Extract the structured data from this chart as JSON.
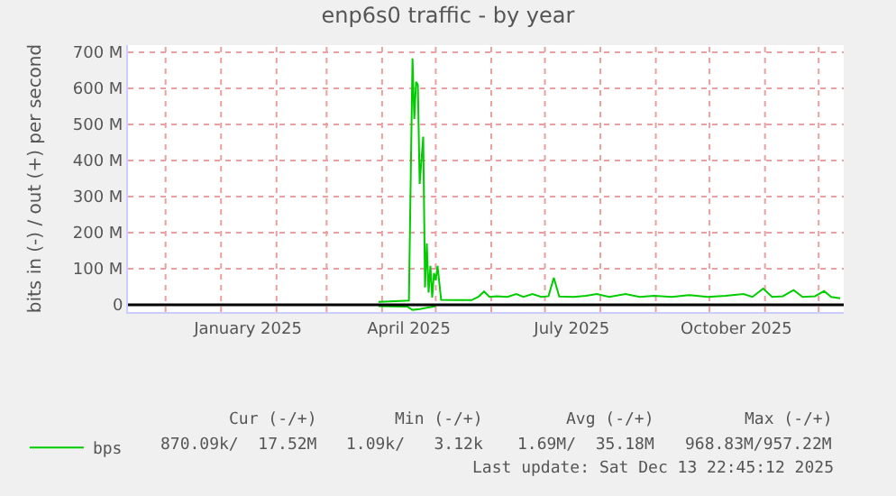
{
  "chart_data": {
    "type": "line",
    "title": "enp6s0 traffic - by year",
    "ylabel": "bits in (-) / out (+) per second",
    "series": [
      {
        "name": "bps",
        "color": "#00cc00",
        "x": [
          "2025-03-30",
          "2025-04-08",
          "2025-04-16",
          "2025-04-18",
          "2025-04-19",
          "2025-04-20",
          "2025-04-21",
          "2025-04-22",
          "2025-04-24",
          "2025-04-25",
          "2025-04-26",
          "2025-04-27",
          "2025-04-28",
          "2025-04-29",
          "2025-04-30",
          "2025-05-01",
          "2025-05-02",
          "2025-05-04",
          "2025-05-13",
          "2025-05-21",
          "2025-05-25",
          "2025-05-28",
          "2025-05-31",
          "2025-06-04",
          "2025-06-10",
          "2025-06-15",
          "2025-06-19",
          "2025-06-24",
          "2025-06-29",
          "2025-07-03",
          "2025-07-06",
          "2025-07-09",
          "2025-07-17",
          "2025-07-24",
          "2025-07-30",
          "2025-08-06",
          "2025-08-15",
          "2025-08-23",
          "2025-08-31",
          "2025-09-10",
          "2025-09-20",
          "2025-09-30",
          "2025-10-10",
          "2025-10-20",
          "2025-10-25",
          "2025-10-31",
          "2025-11-05",
          "2025-11-11",
          "2025-11-17",
          "2025-11-22",
          "2025-11-29",
          "2025-12-04",
          "2025-12-08",
          "2025-12-13"
        ],
        "values": [
          8,
          10,
          12,
          683,
          515,
          618,
          610,
          335,
          466,
          48,
          170,
          34,
          108,
          20,
          88,
          68,
          108,
          14,
          13,
          13,
          23,
          37,
          22,
          24,
          22,
          30,
          22,
          30,
          22,
          24,
          75,
          23,
          22,
          25,
          30,
          22,
          30,
          22,
          25,
          22,
          27,
          22,
          25,
          30,
          22,
          45,
          22,
          24,
          41,
          22,
          24,
          38,
          22,
          18
        ]
      },
      {
        "color": "#00cc00",
        "x": [
          "2025-03-30",
          "2025-04-15",
          "2025-04-18",
          "2025-04-22",
          "2025-04-26",
          "2025-05-01"
        ],
        "values": [
          -4,
          -5,
          -14,
          -12,
          -8,
          -4
        ]
      }
    ],
    "xlim": [
      "2024-11-10",
      "2025-12-15"
    ],
    "xticks": [
      {
        "value": "2024-12-01",
        "label": null
      },
      {
        "value": "2025-01-01",
        "label": null
      },
      {
        "value": "2025-02-01",
        "label": null
      },
      {
        "value": "2025-03-01",
        "label": null
      },
      {
        "value": "2025-04-01",
        "label": null
      },
      {
        "value": "2025-05-01",
        "label": null
      },
      {
        "value": "2025-06-01",
        "label": null
      },
      {
        "value": "2025-07-01",
        "label": null
      },
      {
        "value": "2025-08-01",
        "label": null
      },
      {
        "value": "2025-09-01",
        "label": null
      },
      {
        "value": "2025-10-01",
        "label": null
      },
      {
        "value": "2025-11-01",
        "label": null
      },
      {
        "value": "2025-12-01",
        "label": null
      },
      {
        "value": "2025-01-16",
        "label": "January 2025"
      },
      {
        "value": "2025-04-16",
        "label": "April 2025"
      },
      {
        "value": "2025-07-16",
        "label": "July 2025"
      },
      {
        "value": "2025-10-16",
        "label": "October 2025"
      }
    ],
    "ylim": [
      -20,
      720
    ],
    "yticks": [
      0,
      {
        "value": 100,
        "label": "100 M"
      },
      {
        "value": 200,
        "label": "200 M"
      },
      {
        "value": 300,
        "label": "300 M"
      },
      {
        "value": 400,
        "label": "400 M"
      },
      {
        "value": 500,
        "label": "500 M"
      },
      {
        "value": 600,
        "label": "600 M"
      },
      {
        "value": 700,
        "label": "700 M"
      }
    ],
    "ref_lines": [
      {
        "axis": "y",
        "value": 0,
        "color": "#000000"
      }
    ],
    "grid": true,
    "legend": "bottom left",
    "annotations": [
      "Cur (-/+)",
      "Min (-/+)",
      "Avg (-/+)",
      "Max (-/+)",
      "870.09k/  17.52M",
      "1.09k/   3.12k",
      "1.69M/  35.18M",
      "968.83M/957.22M",
      "Last update: Sat Dec 13 22:45:12 2025"
    ]
  }
}
